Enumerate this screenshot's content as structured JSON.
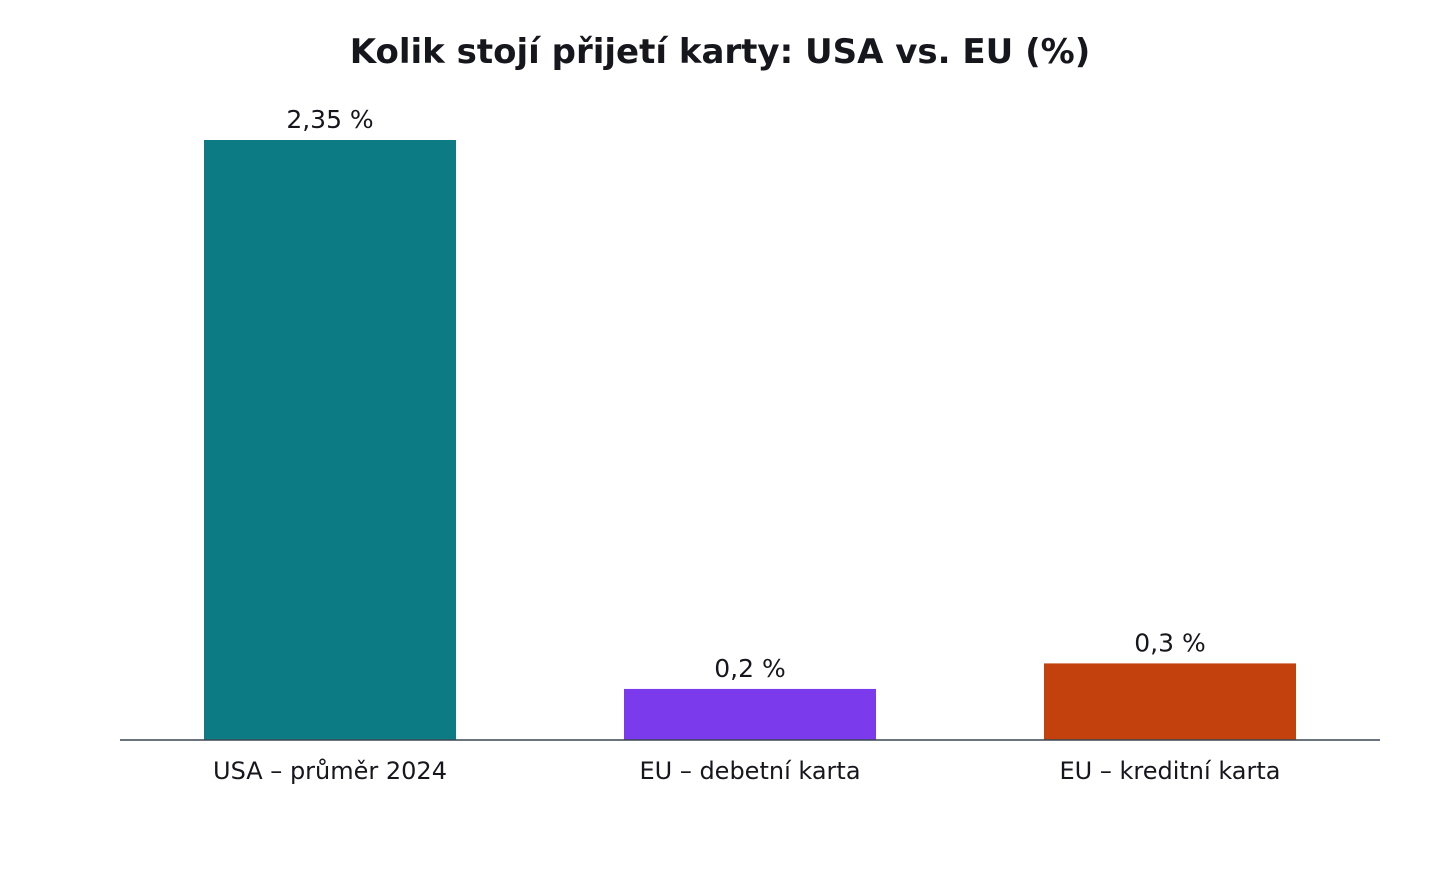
{
  "chart_data": {
    "type": "bar",
    "title": "Kolik stojí přijetí karty: USA vs. EU (%)",
    "xlabel": "",
    "ylabel": "",
    "categories": [
      "USA – průměr 2024",
      "EU – debetní karta",
      "EU – kreditní karta"
    ],
    "values": [
      2.35,
      0.2,
      0.3
    ],
    "value_labels": [
      "2,35 %",
      "0,2 %",
      "0,3 %"
    ],
    "colors": [
      "#0c7b84",
      "#7b3aec",
      "#c2410c"
    ],
    "ylim": [
      0,
      2.35
    ],
    "grid": false,
    "legend": "none"
  },
  "style": {
    "axis_color": "#3a4750",
    "text_color": "#16161d"
  }
}
